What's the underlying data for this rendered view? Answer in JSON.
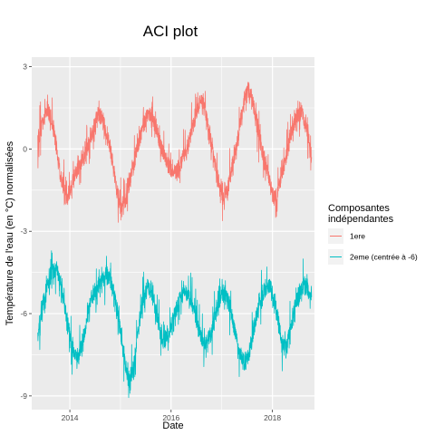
{
  "chart_data": {
    "type": "line",
    "title": "ACI plot",
    "xlabel": "Date",
    "ylabel": "Température de l'eau (en °C) normalisées",
    "xlim": [
      "2013-04-01",
      "2018-10-31"
    ],
    "ylim": [
      -9.5,
      3.35
    ],
    "x_ticks": [
      {
        "value": "2014-01-01",
        "label": "2014"
      },
      {
        "value": "2016-01-01",
        "label": "2016"
      },
      {
        "value": "2018-01-01",
        "label": "2018"
      }
    ],
    "y_ticks": [
      {
        "value": 3,
        "label": "3"
      },
      {
        "value": 0,
        "label": "0"
      },
      {
        "value": -3,
        "label": "-3"
      },
      {
        "value": -6,
        "label": "-6"
      },
      {
        "value": -9,
        "label": "-9"
      }
    ],
    "grid": true,
    "legend": {
      "title_lines": [
        "Composantes",
        "indépendantes"
      ],
      "position": "right"
    },
    "series": [
      {
        "name": "1ere",
        "color": "#F8766D",
        "points": [
          [
            "2013-05-15",
            0.3
          ],
          [
            "2013-06-15",
            1.0
          ],
          [
            "2013-07-20",
            1.5
          ],
          [
            "2013-08-15",
            1.2
          ],
          [
            "2013-09-15",
            0.5
          ],
          [
            "2013-10-20",
            -0.8
          ],
          [
            "2013-11-20",
            -1.5
          ],
          [
            "2013-12-20",
            -1.8
          ],
          [
            "2014-01-20",
            -1.2
          ],
          [
            "2014-02-20",
            -0.8
          ],
          [
            "2014-03-20",
            -0.6
          ],
          [
            "2014-04-20",
            -0.2
          ],
          [
            "2014-05-20",
            0.2
          ],
          [
            "2014-06-20",
            0.8
          ],
          [
            "2014-07-20",
            1.3
          ],
          [
            "2014-08-15",
            1.2
          ],
          [
            "2014-09-15",
            0.7
          ],
          [
            "2014-10-20",
            0.0
          ],
          [
            "2014-11-20",
            -1.0
          ],
          [
            "2014-12-20",
            -1.8
          ],
          [
            "2015-01-10",
            -2.3
          ],
          [
            "2015-02-10",
            -1.8
          ],
          [
            "2015-03-10",
            -1.2
          ],
          [
            "2015-04-10",
            -0.5
          ],
          [
            "2015-05-10",
            0.2
          ],
          [
            "2015-06-10",
            0.8
          ],
          [
            "2015-07-10",
            1.2
          ],
          [
            "2015-08-10",
            1.3
          ],
          [
            "2015-09-10",
            0.9
          ],
          [
            "2015-10-10",
            0.2
          ],
          [
            "2015-11-10",
            -0.2
          ],
          [
            "2015-12-10",
            -0.6
          ],
          [
            "2016-01-10",
            -0.8
          ],
          [
            "2016-02-10",
            -0.8
          ],
          [
            "2016-03-10",
            -0.6
          ],
          [
            "2016-04-10",
            -0.2
          ],
          [
            "2016-05-10",
            0.3
          ],
          [
            "2016-06-10",
            0.9
          ],
          [
            "2016-07-10",
            1.5
          ],
          [
            "2016-08-10",
            1.8
          ],
          [
            "2016-09-10",
            1.2
          ],
          [
            "2016-10-10",
            0.4
          ],
          [
            "2016-11-10",
            -0.5
          ],
          [
            "2016-12-10",
            -1.2
          ],
          [
            "2017-01-10",
            -1.8
          ],
          [
            "2017-02-10",
            -1.5
          ],
          [
            "2017-03-10",
            -0.8
          ],
          [
            "2017-04-10",
            -0.1
          ],
          [
            "2017-05-10",
            0.8
          ],
          [
            "2017-06-10",
            1.8
          ],
          [
            "2017-07-10",
            2.2
          ],
          [
            "2017-08-10",
            1.8
          ],
          [
            "2017-09-10",
            1.0
          ],
          [
            "2017-10-10",
            0.2
          ],
          [
            "2017-11-10",
            -0.6
          ],
          [
            "2017-12-10",
            -1.2
          ],
          [
            "2018-01-10",
            -1.8
          ],
          [
            "2018-02-10",
            -1.5
          ],
          [
            "2018-03-10",
            -1.0
          ],
          [
            "2018-04-10",
            -0.3
          ],
          [
            "2018-05-10",
            0.4
          ],
          [
            "2018-06-10",
            1.0
          ],
          [
            "2018-07-10",
            1.3
          ],
          [
            "2018-08-10",
            1.2
          ],
          [
            "2018-09-10",
            0.6
          ],
          [
            "2018-10-10",
            -0.3
          ]
        ]
      },
      {
        "name": "2eme (centrée à -6)",
        "color": "#00BFC4",
        "points": [
          [
            "2013-05-15",
            -6.8
          ],
          [
            "2013-06-15",
            -5.8
          ],
          [
            "2013-07-20",
            -5.0
          ],
          [
            "2013-08-20",
            -4.6
          ],
          [
            "2013-09-20",
            -4.3
          ],
          [
            "2013-10-20",
            -4.8
          ],
          [
            "2013-11-20",
            -5.6
          ],
          [
            "2013-12-20",
            -6.5
          ],
          [
            "2014-01-20",
            -7.2
          ],
          [
            "2014-02-20",
            -7.6
          ],
          [
            "2014-03-20",
            -7.3
          ],
          [
            "2014-04-20",
            -6.6
          ],
          [
            "2014-05-20",
            -5.8
          ],
          [
            "2014-06-20",
            -5.2
          ],
          [
            "2014-07-20",
            -5.0
          ],
          [
            "2014-08-20",
            -4.8
          ],
          [
            "2014-09-20",
            -4.6
          ],
          [
            "2014-10-20",
            -4.8
          ],
          [
            "2014-11-20",
            -5.3
          ],
          [
            "2014-12-20",
            -6.2
          ],
          [
            "2015-01-20",
            -7.4
          ],
          [
            "2015-02-20",
            -8.2
          ],
          [
            "2015-03-10",
            -8.5
          ],
          [
            "2015-04-10",
            -7.8
          ],
          [
            "2015-05-10",
            -6.5
          ],
          [
            "2015-06-10",
            -5.6
          ],
          [
            "2015-07-10",
            -5.0
          ],
          [
            "2015-08-10",
            -5.2
          ],
          [
            "2015-09-10",
            -5.8
          ],
          [
            "2015-10-10",
            -6.6
          ],
          [
            "2015-11-10",
            -7.0
          ],
          [
            "2015-12-10",
            -6.8
          ],
          [
            "2016-01-10",
            -6.3
          ],
          [
            "2016-02-10",
            -5.8
          ],
          [
            "2016-03-10",
            -5.4
          ],
          [
            "2016-04-10",
            -5.2
          ],
          [
            "2016-05-10",
            -5.4
          ],
          [
            "2016-06-10",
            -5.8
          ],
          [
            "2016-07-10",
            -6.4
          ],
          [
            "2016-08-10",
            -7.0
          ],
          [
            "2016-09-10",
            -7.1
          ],
          [
            "2016-10-10",
            -6.8
          ],
          [
            "2016-11-10",
            -6.2
          ],
          [
            "2016-12-10",
            -5.6
          ],
          [
            "2017-01-10",
            -5.2
          ],
          [
            "2017-02-10",
            -5.3
          ],
          [
            "2017-03-10",
            -6.0
          ],
          [
            "2017-04-10",
            -6.8
          ],
          [
            "2017-05-10",
            -7.4
          ],
          [
            "2017-06-10",
            -7.8
          ],
          [
            "2017-07-10",
            -7.6
          ],
          [
            "2017-08-10",
            -6.8
          ],
          [
            "2017-09-10",
            -6.0
          ],
          [
            "2017-10-10",
            -5.4
          ],
          [
            "2017-11-10",
            -5.1
          ],
          [
            "2017-12-10",
            -5.0
          ],
          [
            "2018-01-10",
            -5.4
          ],
          [
            "2018-02-10",
            -6.2
          ],
          [
            "2018-03-10",
            -7.0
          ],
          [
            "2018-04-10",
            -7.2
          ],
          [
            "2018-05-10",
            -6.6
          ],
          [
            "2018-06-10",
            -5.8
          ],
          [
            "2018-07-10",
            -5.3
          ],
          [
            "2018-08-10",
            -5.0
          ],
          [
            "2018-09-10",
            -5.1
          ],
          [
            "2018-10-10",
            -5.4
          ]
        ]
      }
    ]
  }
}
